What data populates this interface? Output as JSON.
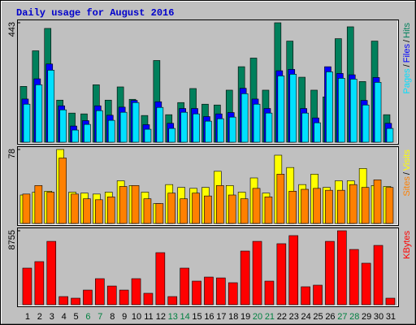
{
  "title": "Daily usage for August 2016",
  "label_separator": "/",
  "chart_data": [
    {
      "type": "bar",
      "ylim": [
        0,
        443
      ],
      "yticks": [
        443
      ],
      "series": [
        {
          "name": "Hits",
          "color": "#00805C",
          "values": [
            207,
            339,
            422,
            156,
            108,
            105,
            213,
            156,
            205,
            159,
            99,
            303,
            102,
            147,
            199,
            141,
            138,
            193,
            280,
            312,
            193,
            443,
            375,
            241,
            193,
            168,
            384,
            428,
            225,
            375,
            102
          ]
        },
        {
          "name": "Files",
          "color": "#0000FF",
          "values": [
            160,
            235,
            290,
            135,
            60,
            80,
            135,
            100,
            130,
            155,
            65,
            150,
            70,
            125,
            125,
            95,
            105,
            110,
            200,
            160,
            125,
            265,
            270,
            125,
            90,
            280,
            255,
            250,
            155,
            240,
            70
          ]
        },
        {
          "name": "Pages",
          "color": "#00E0FF",
          "values": [
            141,
            213,
            267,
            120,
            45,
            66,
            117,
            81,
            111,
            147,
            48,
            129,
            51,
            111,
            105,
            78,
            87,
            93,
            180,
            141,
            108,
            246,
            252,
            108,
            72,
            261,
            237,
            234,
            138,
            222,
            51
          ]
        }
      ]
    },
    {
      "type": "bar",
      "ylim": [
        0,
        78
      ],
      "yticks": [
        78
      ],
      "series": [
        {
          "name": "Visits",
          "color": "#FFFF00",
          "values": [
            30,
            33,
            34,
            78,
            33,
            32,
            31,
            33,
            45,
            40,
            33,
            21,
            41,
            38,
            37,
            38,
            55,
            40,
            33,
            48,
            32,
            72,
            59,
            41,
            52,
            38,
            45,
            45,
            58,
            40,
            39
          ]
        },
        {
          "name": "Sites",
          "color": "#FF8000",
          "values": [
            31,
            40,
            33,
            69,
            31,
            26,
            25,
            28,
            39,
            40,
            26,
            21,
            32,
            26,
            32,
            29,
            40,
            30,
            26,
            37,
            28,
            52,
            34,
            36,
            37,
            35,
            35,
            41,
            38,
            46,
            38
          ]
        }
      ]
    },
    {
      "type": "bar",
      "ylim": [
        0,
        8755
      ],
      "yticks": [
        8755
      ],
      "categories": [
        "1",
        "2",
        "3",
        "4",
        "5",
        "6",
        "7",
        "8",
        "9",
        "10",
        "11",
        "12",
        "13",
        "14",
        "15",
        "16",
        "17",
        "18",
        "19",
        "20",
        "21",
        "22",
        "23",
        "24",
        "25",
        "26",
        "27",
        "28",
        "29",
        "30",
        "31"
      ],
      "label_colors": [
        "#000000",
        "#000000",
        "#000000",
        "#000000",
        "#000000",
        "#008040",
        "#008040",
        "#000000",
        "#000000",
        "#000000",
        "#000000",
        "#000000",
        "#008040",
        "#008040",
        "#000000",
        "#000000",
        "#000000",
        "#000000",
        "#000000",
        "#008040",
        "#008040",
        "#000000",
        "#000000",
        "#000000",
        "#000000",
        "#000000",
        "#008040",
        "#008040",
        "#000000",
        "#000000",
        "#000000"
      ],
      "series": [
        {
          "name": "KBytes",
          "color": "#FF0000",
          "values": [
            4330,
            5100,
            7500,
            960,
            770,
            1730,
            3080,
            2210,
            1730,
            3080,
            1350,
            6160,
            960,
            4330,
            2790,
            3270,
            3170,
            2600,
            6350,
            7500,
            2790,
            7220,
            8180,
            2120,
            2310,
            7500,
            8755,
            6540,
            4910,
            7020,
            770
          ]
        }
      ]
    }
  ]
}
